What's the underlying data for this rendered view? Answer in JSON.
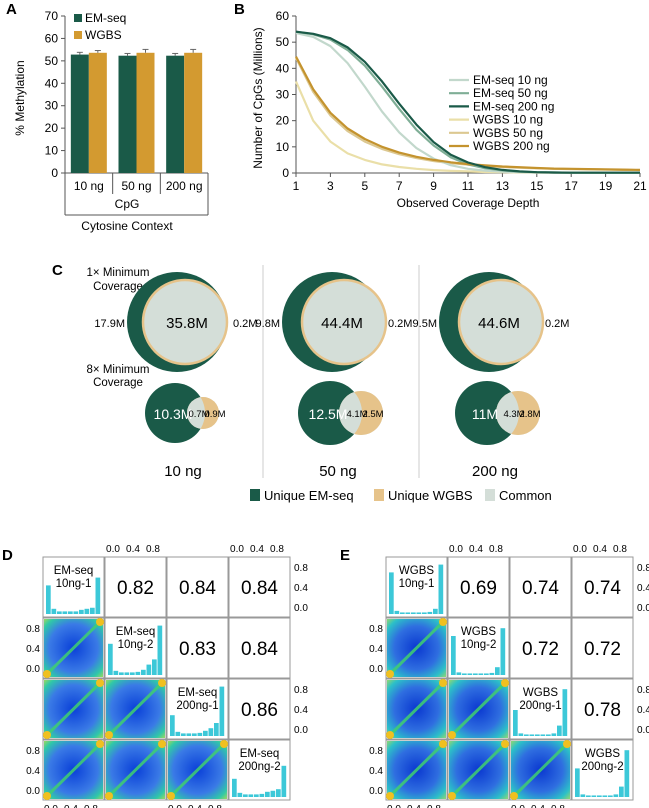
{
  "colors": {
    "emseq": "#1a5a48",
    "wgbs": "#d39a30",
    "common": "#d4ded8",
    "unique_wgbs": "#e6c38a",
    "em10": "#c2d8cc",
    "em50": "#7fae96",
    "em200": "#1a5a48",
    "wg10": "#eadfa8",
    "wg50": "#dcc891",
    "wg200": "#c4932e"
  },
  "panels": {
    "A": {
      "label": "A",
      "chart_data": {
        "type": "bar",
        "ylabel": "% Methylation",
        "ylim": [
          0,
          70
        ],
        "yticks": [
          "0",
          "10",
          "20",
          "30",
          "40",
          "50",
          "60",
          "70"
        ],
        "categories": [
          "10 ng",
          "50 ng",
          "200 ng"
        ],
        "group_label": "CpG",
        "xlabel": "Cytosine Context",
        "series": [
          {
            "name": "EM-seq",
            "values": [
              52.8,
              52.3,
              52.3
            ],
            "errors": [
              1.0,
              1.0,
              1.0
            ]
          },
          {
            "name": "WGBS",
            "values": [
              53.6,
              53.6,
              53.6
            ],
            "errors": [
              1.0,
              1.5,
              1.5
            ]
          }
        ],
        "legend": "top-left"
      }
    },
    "B": {
      "label": "B",
      "chart_data": {
        "type": "line",
        "ylabel": "Number of CpGs (Millions)",
        "xlabel": "Observed Coverage Depth",
        "ylim": [
          0,
          60
        ],
        "xlim": [
          1,
          21
        ],
        "yticks": [
          "0",
          "10",
          "20",
          "30",
          "40",
          "50",
          "60"
        ],
        "xticks": [
          "1",
          "3",
          "5",
          "7",
          "9",
          "11",
          "13",
          "15",
          "17",
          "19",
          "21"
        ],
        "series": [
          {
            "name": "EM-seq 10 ng",
            "x": [
              1,
              2,
              3,
              4,
              5,
              6,
              7,
              8,
              9,
              10,
              11,
              12,
              13,
              14,
              15,
              16,
              17,
              18,
              19,
              20,
              21
            ],
            "y": [
              53.5,
              52.0,
              48.5,
              42.0,
              33.0,
              23.5,
              15.5,
              9.5,
              5.5,
              3.0,
              1.6,
              0.9,
              0.5,
              0.3,
              0.2,
              0.1,
              0.1,
              0.1,
              0.1,
              0.1,
              0.1
            ]
          },
          {
            "name": "EM-seq 50 ng",
            "x": [
              1,
              2,
              3,
              4,
              5,
              6,
              7,
              8,
              9,
              10,
              11,
              12,
              13,
              14,
              15,
              16,
              17,
              18,
              19,
              20,
              21
            ],
            "y": [
              54.0,
              53.0,
              51.0,
              47.0,
              41.0,
              33.0,
              24.5,
              16.5,
              10.5,
              6.0,
              3.3,
              1.8,
              1.0,
              0.5,
              0.3,
              0.2,
              0.1,
              0.1,
              0.1,
              0.1,
              0.1
            ]
          },
          {
            "name": "EM-seq 200 ng",
            "x": [
              1,
              2,
              3,
              4,
              5,
              6,
              7,
              8,
              9,
              10,
              11,
              12,
              13,
              14,
              15,
              16,
              17,
              18,
              19,
              20,
              21
            ],
            "y": [
              54.0,
              53.2,
              51.5,
              48.0,
              42.5,
              35.0,
              26.5,
              18.5,
              11.8,
              7.0,
              4.0,
              2.2,
              1.2,
              0.6,
              0.3,
              0.2,
              0.1,
              0.1,
              0.1,
              0.1,
              0.1
            ]
          },
          {
            "name": "WGBS 10 ng",
            "x": [
              1,
              2,
              3,
              4,
              5,
              6,
              7,
              8,
              9,
              10,
              11,
              12,
              13,
              14,
              15,
              16,
              17,
              18,
              19,
              20,
              21
            ],
            "y": [
              35.0,
              20.0,
              12.0,
              7.5,
              5.0,
              3.3,
              2.3,
              1.6,
              1.1,
              0.8,
              0.6,
              0.4,
              0.3,
              0.2,
              0.15,
              0.1,
              0.1,
              0.1,
              0.1,
              0.1,
              0.1
            ]
          },
          {
            "name": "WGBS 50 ng",
            "x": [
              1,
              2,
              3,
              4,
              5,
              6,
              7,
              8,
              9,
              10,
              11,
              12,
              13,
              14,
              15,
              16,
              17,
              18,
              19,
              20,
              21
            ],
            "y": [
              44.0,
              31.0,
              22.0,
              16.0,
              12.0,
              9.2,
              7.2,
              5.7,
              4.6,
              3.8,
              3.2,
              2.7,
              2.3,
              2.0,
              1.8,
              1.6,
              1.5,
              1.4,
              1.3,
              1.2,
              1.1
            ]
          },
          {
            "name": "WGBS 200 ng",
            "x": [
              1,
              2,
              3,
              4,
              5,
              6,
              7,
              8,
              9,
              10,
              11,
              12,
              13,
              14,
              15,
              16,
              17,
              18,
              19,
              20,
              21
            ],
            "y": [
              44.5,
              32.0,
              23.0,
              17.0,
              13.0,
              10.0,
              7.8,
              6.2,
              5.0,
              4.1,
              3.4,
              2.9,
              2.5,
              2.2,
              1.9,
              1.7,
              1.6,
              1.5,
              1.4,
              1.3,
              1.2
            ]
          }
        ],
        "legend": "right"
      }
    },
    "C": {
      "label": "C",
      "row_labels": [
        "1× Minimum\nCoverage",
        "8× Minimum\nCoverage"
      ],
      "row1_line1": "1× Minimum",
      "row1_line2": "Coverage",
      "row2_line1": "8× Minimum",
      "row2_line2": "Coverage",
      "columns": [
        "10 ng",
        "50 ng",
        "200 ng"
      ],
      "chart_data": {
        "type": "venn",
        "sets": [
          "Unique EM-seq",
          "Unique WGBS",
          "Common"
        ],
        "cov1x": [
          {
            "input": "10 ng",
            "unique_emseq": "17.9M",
            "common": "35.8M",
            "unique_wgbs": "0.2M"
          },
          {
            "input": "50 ng",
            "unique_emseq": "9.8M",
            "common": "44.4M",
            "unique_wgbs": "0.2M"
          },
          {
            "input": "200 ng",
            "unique_emseq": "9.5M",
            "common": "44.6M",
            "unique_wgbs": "0.2M"
          }
        ],
        "cov8x": [
          {
            "input": "10 ng",
            "unique_emseq": "10.3M",
            "common": "0.7M",
            "unique_wgbs": "0.9M"
          },
          {
            "input": "50 ng",
            "unique_emseq": "12.5M",
            "common": "4.1M",
            "unique_wgbs": "2.5M"
          },
          {
            "input": "200 ng",
            "unique_emseq": "11M",
            "common": "4.3M",
            "unique_wgbs": "2.8M"
          }
        ]
      },
      "legend": [
        "Unique EM-seq",
        "Unique WGBS",
        "Common"
      ]
    },
    "D": {
      "label": "D",
      "chart_data": {
        "type": "correlation-matrix",
        "samples": [
          "EM-seq\n10ng-1",
          "EM-seq\n10ng-2",
          "EM-seq\n200ng-1",
          "EM-seq\n200ng-2"
        ],
        "sample_lines": [
          [
            "EM-seq",
            "10ng-1"
          ],
          [
            "EM-seq",
            "10ng-2"
          ],
          [
            "EM-seq",
            "200ng-1"
          ],
          [
            "EM-seq",
            "200ng-2"
          ]
        ],
        "correlations": [
          [
            "",
            "0.82",
            "0.84",
            "0.84"
          ],
          [
            "",
            "",
            "0.83",
            "0.84"
          ],
          [
            "",
            "",
            "",
            "0.86"
          ],
          [
            "",
            "",
            "",
            ""
          ]
        ],
        "axis_ticks": [
          "0.0",
          "0.4",
          "0.8"
        ]
      }
    },
    "E": {
      "label": "E",
      "chart_data": {
        "type": "correlation-matrix",
        "samples": [
          "WGBS\n10ng-1",
          "WGBS\n10ng-2",
          "WGBS\n200ng-1",
          "WGBS\n200ng-2"
        ],
        "sample_lines": [
          [
            "WGBS",
            "10ng-1"
          ],
          [
            "WGBS",
            "10ng-2"
          ],
          [
            "WGBS",
            "200ng-1"
          ],
          [
            "WGBS",
            "200ng-2"
          ]
        ],
        "correlations": [
          [
            "",
            "0.69",
            "0.74",
            "0.74"
          ],
          [
            "",
            "",
            "0.72",
            "0.72"
          ],
          [
            "",
            "",
            "",
            "0.78"
          ],
          [
            "",
            "",
            "",
            ""
          ]
        ],
        "axis_ticks": [
          "0.0",
          "0.4",
          "0.8"
        ]
      }
    }
  }
}
